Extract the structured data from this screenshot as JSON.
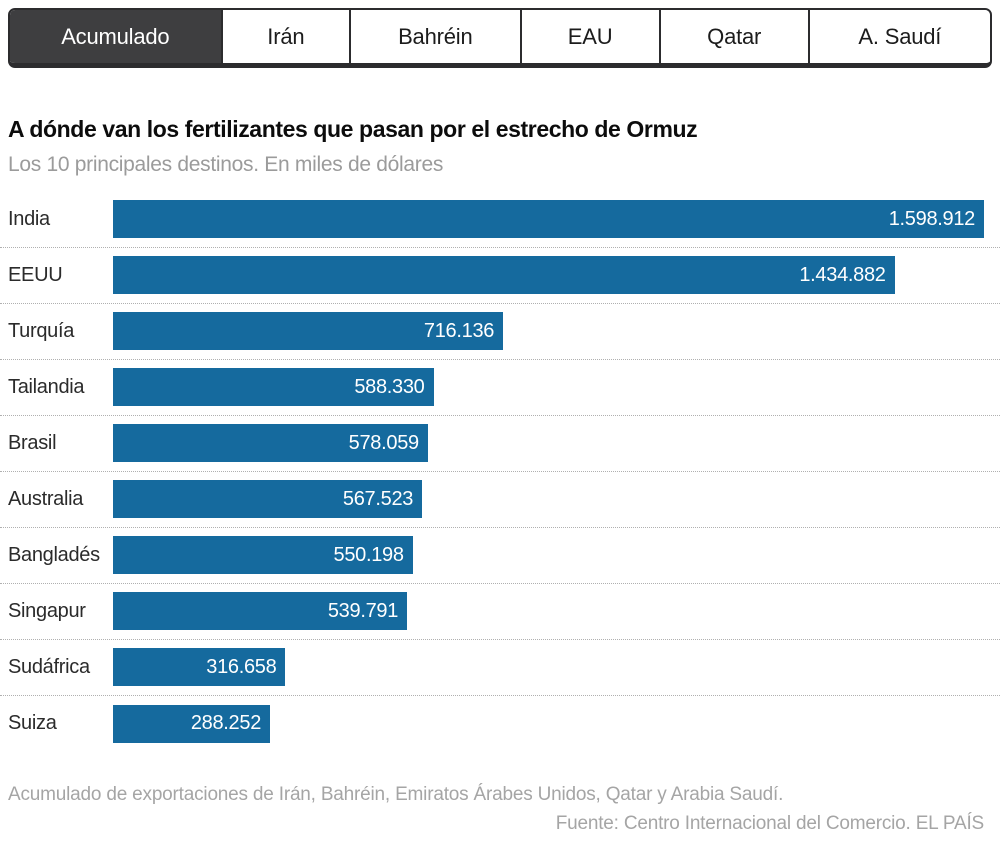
{
  "tabs": [
    {
      "label": "Acumulado",
      "active": true
    },
    {
      "label": "Irán",
      "active": false
    },
    {
      "label": "Bahréin",
      "active": false
    },
    {
      "label": "EAU",
      "active": false
    },
    {
      "label": "Qatar",
      "active": false
    },
    {
      "label": "A. Saudí",
      "active": false
    }
  ],
  "header": {
    "title": "A dónde van los fertilizantes que pasan por el estrecho de Ormuz",
    "subtitle": "Los 10 principales destinos. En miles de dólares"
  },
  "chart_data": {
    "type": "bar",
    "orientation": "horizontal",
    "title": "A dónde van los fertilizantes que pasan por el estrecho de Ormuz",
    "subtitle": "Los 10 principales destinos. En miles de dólares",
    "unit": "miles de dólares",
    "categories": [
      "India",
      "EEUU",
      "Turquía",
      "Tailandia",
      "Brasil",
      "Australia",
      "Bangladés",
      "Singapur",
      "Sudáfrica",
      "Suiza"
    ],
    "values": [
      1598912,
      1434882,
      716136,
      588330,
      578059,
      567523,
      550198,
      539791,
      316658,
      288252
    ],
    "value_labels": [
      "1.598.912",
      "1.434.882",
      "716.136",
      "588.330",
      "578.059",
      "567.523",
      "550.198",
      "539.791",
      "316.658",
      "288.252"
    ],
    "xlim": [
      0,
      1598912
    ],
    "grid": false,
    "legend": false,
    "bar_color": "#156a9e",
    "value_label_position": "inside-end"
  },
  "footer": {
    "note": "Acumulado de exportaciones de Irán, Bahréin, Emiratos Árabes Unidos, Qatar y Arabia Saudí.",
    "source": "Fuente: Centro Internacional del Comercio. EL PAÍS"
  },
  "colors": {
    "bar": "#156a9e",
    "active_tab_bg": "#3e3e40",
    "active_tab_text": "#ffffff",
    "tab_border": "#2c2c2e",
    "subtitle_text": "#9b9b9b",
    "footer_text": "#a5a5a5"
  }
}
